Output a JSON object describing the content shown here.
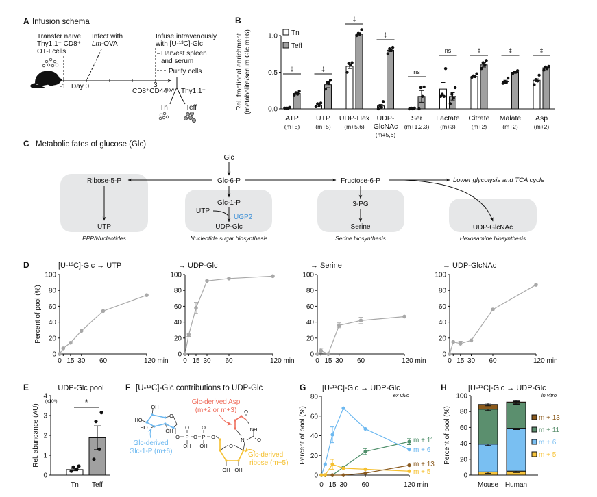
{
  "panel_labels": {
    "A": "A",
    "B": "B",
    "C": "C",
    "D": "D",
    "E": "E",
    "F": "F",
    "G": "G",
    "H": "H"
  },
  "A": {
    "title": "Infusion schema",
    "transfer": [
      "Transfer naïve",
      "Thy1.1⁺ CD8⁺",
      "OT-I cells"
    ],
    "infect": [
      "Infect with",
      "Lm",
      "-OVA"
    ],
    "infuse": [
      "Infuse intravenously",
      "with [U-¹³C]-Glc"
    ],
    "harvest": [
      "Harvest spleen",
      "and serum"
    ],
    "purify": "Purify cells",
    "ticks": {
      "m1": "-1",
      "day0": "Day 0",
      "d3": "3"
    },
    "sort_left": "CD8⁺CD44ˡᵒʷ",
    "sort_right": "Thy1.1⁺",
    "tn": "Tn",
    "teff": "Teff"
  },
  "C": {
    "title": "Metabolic fates of glucose (Glc)",
    "glc": "Glc",
    "g6p": "Glc-6-P",
    "r5p": "Ribose-5-P",
    "utp": "UTP",
    "ppp": "PPP/Nucleotides",
    "g1p": "Glc-1-P",
    "utp2": "UTP",
    "ugp2": "UGP2",
    "udpglc": "UDP-Glc",
    "nsb": "Nucleotide sugar biosynthesis",
    "f6p": "Fructose-6-P",
    "lower": "Lower glycolysis and TCA cycle",
    "pg3": "3-PG",
    "serine": "Serine",
    "serb": "Serine biosynthesis",
    "udpglcnac": "UDP-GlcNAc",
    "hex": "Hexosamine biosynthesis",
    "colors": {
      "box": "#e6e7e8",
      "ugp2": "#3b8fd6"
    }
  },
  "F": {
    "title": "[U-¹³C]-Glc contributions to UDP-Glc",
    "asp": [
      "Glc-derived Asp",
      "(m+2 or m+3)"
    ],
    "g1p": [
      "Glc-derived",
      "Glc-1-P (m+6)"
    ],
    "ribose": [
      "Glc-derived",
      "ribose (m+5)"
    ],
    "atoms": [
      "OH",
      "HO",
      "HO",
      "OH",
      "O",
      "O",
      "P",
      "O",
      "P",
      "O",
      "O",
      "O",
      "OH",
      "OH",
      "O",
      "OH",
      "OH",
      "O",
      "NH",
      "O",
      "N"
    ],
    "colors": {
      "asp": "#ef6f5e",
      "g1p": "#6cb8f0",
      "ribose": "#f5c030"
    }
  },
  "chart_data": [
    {
      "id": "B",
      "type": "bar",
      "ylabel": [
        "Rel. fractional enrichment",
        "(metabolite/serum Glc m+6)"
      ],
      "ylim": [
        0,
        1.1
      ],
      "yticks": [
        0,
        0.5,
        1.0
      ],
      "ytick_labels": [
        "0.0",
        "0.5",
        "1.0"
      ],
      "categories": [
        [
          "ATP",
          "(m+5)"
        ],
        [
          "UTP",
          "(m+5)"
        ],
        [
          "UDP-Hex",
          "(m+5,6)"
        ],
        [
          "UDP-",
          "GlcNAc",
          "(m+5,6)"
        ],
        [
          "Ser",
          "(m+1,2,3)"
        ],
        [
          "Lactate",
          "(m+3)"
        ],
        [
          "Citrate",
          "(m+2)"
        ],
        [
          "Malate",
          "(m+2)"
        ],
        [
          "Asp",
          "(m+2)"
        ]
      ],
      "legend": [
        "Tn",
        "Teff"
      ],
      "legend_position": "top-left",
      "series": [
        {
          "name": "Tn",
          "color": "#ffffff",
          "values": [
            0.01,
            0.05,
            0.58,
            0.04,
            0.005,
            0.27,
            0.44,
            0.37,
            0.39
          ],
          "sem": [
            0.003,
            0.02,
            0.03,
            0.02,
            0.003,
            0.09,
            0.01,
            0.02,
            0.02
          ],
          "points": [
            [
              0.01,
              0.01,
              0.01,
              0.02
            ],
            [
              0.03,
              0.05,
              0.07,
              0.08
            ],
            [
              0.5,
              0.6,
              0.62,
              0.63
            ],
            [
              0,
              0.02,
              0.04,
              0.1
            ],
            [
              0,
              0,
              0.01,
              0.01
            ],
            [
              0.17,
              0.17,
              0.2,
              0.55
            ],
            [
              0.43,
              0.44,
              0.45,
              0.48
            ],
            [
              0.35,
              0.36,
              0.37,
              0.42
            ],
            [
              0.33,
              0.38,
              0.4,
              0.46
            ]
          ]
        },
        {
          "name": "Teff",
          "color": "#a0a0a0",
          "values": [
            0.21,
            0.33,
            1.02,
            0.8,
            0.17,
            0.17,
            0.6,
            0.5,
            0.56
          ],
          "sem": [
            0.01,
            0.04,
            0.02,
            0.02,
            0.08,
            0.05,
            0.03,
            0.01,
            0.01
          ],
          "points": [
            [
              0.19,
              0.2,
              0.22,
              0.24
            ],
            [
              0.27,
              0.35,
              0.36,
              0.39
            ],
            [
              1.0,
              1.02,
              1.03,
              1.08
            ],
            [
              0.75,
              0.8,
              0.82,
              0.84
            ],
            [
              0,
              0.17,
              0.29,
              0.3
            ],
            [
              0.07,
              0.15,
              0.2,
              0.29
            ],
            [
              0.55,
              0.6,
              0.63,
              0.66
            ],
            [
              0.48,
              0.5,
              0.5,
              0.52
            ],
            [
              0.53,
              0.55,
              0.57,
              0.58
            ]
          ]
        }
      ],
      "significance": [
        "‡",
        "‡",
        "‡",
        "‡",
        "ns",
        "ns",
        "‡",
        "‡",
        "‡"
      ]
    },
    {
      "id": "D1",
      "type": "line",
      "title": "[U-¹³C]-Glc → UTP",
      "ylabel": "Percent of pool (%)",
      "x": [
        0,
        5,
        15,
        30,
        60,
        120
      ],
      "values": [
        0,
        7,
        14,
        29,
        54,
        74
      ],
      "err": [
        0,
        0,
        0,
        0,
        0,
        0
      ],
      "ylim": [
        0,
        100
      ],
      "yticks": [
        0,
        20,
        40,
        60,
        80,
        100
      ],
      "xticks": [
        0,
        15,
        30,
        60,
        120
      ],
      "xtick_labels": [
        "0",
        "15",
        "30",
        "60",
        "120 min"
      ],
      "color": "#a8a8a8"
    },
    {
      "id": "D2",
      "type": "line",
      "title": "→ UDP-Glc",
      "x": [
        0,
        5,
        15,
        30,
        60,
        120
      ],
      "values": [
        0,
        24,
        58,
        92,
        95,
        98
      ],
      "err": [
        0,
        2,
        7,
        0,
        0,
        0
      ],
      "ylim": [
        0,
        100
      ],
      "yticks": [
        0,
        20,
        40,
        60,
        80,
        100
      ],
      "xticks": [
        0,
        15,
        30,
        60,
        120
      ],
      "xtick_labels": [
        "0",
        "15",
        "30",
        "60",
        "120 min"
      ],
      "color": "#a8a8a8"
    },
    {
      "id": "D3",
      "type": "line",
      "title": "→ Serine",
      "x": [
        0,
        5,
        15,
        30,
        60,
        120
      ],
      "values": [
        0,
        4,
        0,
        36,
        42,
        47
      ],
      "err": [
        0,
        3,
        0,
        3,
        4,
        0
      ],
      "ylim": [
        0,
        100
      ],
      "yticks": [
        0,
        20,
        40,
        60,
        80,
        100
      ],
      "xticks": [
        0,
        15,
        30,
        60,
        120
      ],
      "xtick_labels": [
        "0",
        "15",
        "30",
        "60",
        "120 min"
      ],
      "color": "#a8a8a8"
    },
    {
      "id": "D4",
      "type": "line",
      "title": "→ UDP-GlcNAc",
      "x": [
        0,
        5,
        15,
        30,
        60,
        120
      ],
      "values": [
        0,
        15,
        13,
        17,
        56,
        87
      ],
      "err": [
        0,
        0,
        3,
        0,
        0,
        0
      ],
      "ylim": [
        0,
        100
      ],
      "yticks": [
        0,
        20,
        40,
        60,
        80,
        100
      ],
      "xticks": [
        0,
        15,
        30,
        60,
        120
      ],
      "xtick_labels": [
        "0",
        "15",
        "30",
        "60",
        "120 min"
      ],
      "color": "#a8a8a8"
    },
    {
      "id": "E",
      "type": "bar",
      "title": "UDP-Glc pool",
      "ylabel": "Rel. abundance (AU)",
      "yscale_label": "(x10⁶)",
      "categories": [
        "Tn",
        "Teff"
      ],
      "values": [
        0.28,
        1.88
      ],
      "sem": [
        0.06,
        0.6
      ],
      "points": [
        [
          0.2,
          0.3,
          0.4,
          0.45
        ],
        [
          0.8,
          1.3,
          2.7,
          3.15
        ]
      ],
      "colors": [
        "#ffffff",
        "#a0a0a0"
      ],
      "ylim": [
        0,
        4
      ],
      "yticks": [
        0,
        1,
        2,
        3,
        4
      ],
      "significance": "*"
    },
    {
      "id": "G",
      "type": "line",
      "title": "[U-¹³C]-Glc → UDP-Glc",
      "subtitle": "ex vivo",
      "ylabel": "Percent of pool (%)",
      "x": [
        0,
        5,
        15,
        30,
        60,
        120
      ],
      "ylim": [
        0,
        80
      ],
      "yticks": [
        0,
        20,
        40,
        60,
        80
      ],
      "xticks": [
        0,
        15,
        30,
        60,
        120
      ],
      "xtick_labels": [
        "0",
        "15",
        "30",
        "60",
        "120 min"
      ],
      "series": [
        {
          "name": "m + 11",
          "color": "#4e8f6a",
          "values": [
            0,
            0,
            0,
            8,
            24,
            34
          ],
          "err": [
            0,
            0,
            0,
            0,
            3,
            3
          ]
        },
        {
          "name": "m + 6",
          "color": "#6cb8f0",
          "values": [
            0,
            11,
            41,
            68,
            47,
            26
          ],
          "err": [
            0,
            0,
            8,
            0,
            0,
            0
          ]
        },
        {
          "name": "m + 13",
          "color": "#8a5a1e",
          "values": [
            0,
            0,
            0,
            0,
            2,
            10
          ],
          "err": [
            0,
            0,
            0,
            0,
            0,
            0
          ]
        },
        {
          "name": "m + 5",
          "color": "#f5c030",
          "values": [
            0,
            0,
            11,
            7,
            6,
            4
          ],
          "err": [
            0,
            0,
            5,
            0,
            0,
            0
          ]
        }
      ]
    },
    {
      "id": "H",
      "type": "bar",
      "stacked": true,
      "title": "[U-¹³C]-Glc → UDP-Glc",
      "subtitle": "in vitro",
      "ylabel": "Percent of pool (%)",
      "categories": [
        "Mouse",
        "Human"
      ],
      "ylim": [
        0,
        100
      ],
      "yticks": [
        0,
        20,
        40,
        60,
        80,
        100
      ],
      "legend_position": "right",
      "series": [
        {
          "name": "m + 5",
          "color": "#f7c43c",
          "values": [
            4,
            5
          ]
        },
        {
          "name": "m + 6",
          "color": "#79bff2",
          "values": [
            35,
            54
          ]
        },
        {
          "name": "m + 11",
          "color": "#5b8f6e",
          "values": [
            44,
            32
          ]
        },
        {
          "name": "m + 13",
          "color": "#8b5a1c",
          "values": [
            6,
            1
          ]
        }
      ]
    }
  ]
}
